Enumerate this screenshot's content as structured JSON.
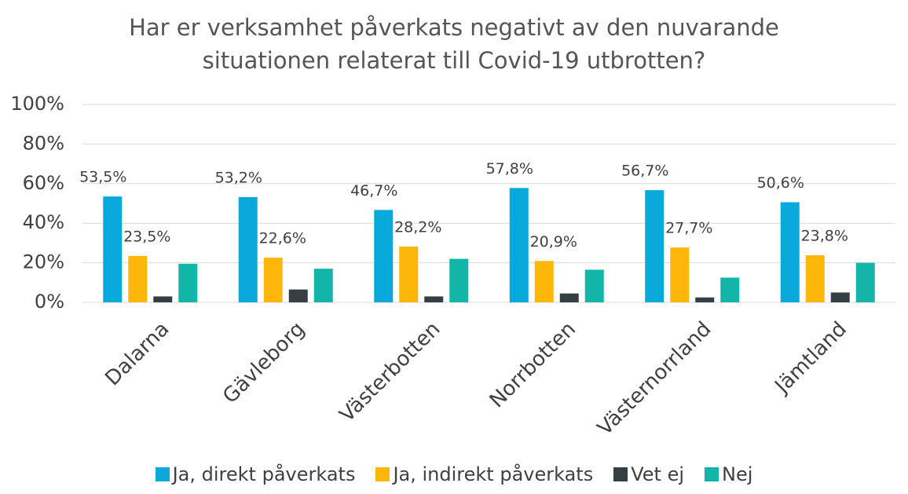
{
  "chart_data": {
    "type": "bar",
    "title": "Har er verksamhet påverkats negativt av den nuvarande situationen relaterat till Covid-19 utbrotten?",
    "categories": [
      "Dalarna",
      "Gävleborg",
      "Västerbotten",
      "Norrbotten",
      "Västernorrland",
      "Jämtland"
    ],
    "series": [
      {
        "name": "Ja, direkt påverkats",
        "color": "#0aa9dc",
        "values": [
          53.5,
          53.2,
          46.7,
          57.8,
          56.7,
          50.6
        ],
        "value_labels": [
          "53,5%",
          "53,2%",
          "46,7%",
          "57,8%",
          "56,7%",
          "50,6%"
        ]
      },
      {
        "name": "Ja, indirekt påverkats",
        "color": "#ffb60a",
        "values": [
          23.5,
          22.6,
          28.2,
          20.9,
          27.7,
          23.8
        ],
        "value_labels": [
          "23,5%",
          "22,6%",
          "28,2%",
          "20,9%",
          "27,7%",
          "23,8%"
        ]
      },
      {
        "name": "Vet ej",
        "color": "#363f44",
        "values": [
          3,
          6.5,
          3,
          4.5,
          2.5,
          5
        ]
      },
      {
        "name": "Nej",
        "color": "#12b5a8",
        "values": [
          19.5,
          17,
          22,
          16.5,
          12.5,
          20
        ]
      }
    ],
    "ylim": [
      0,
      100
    ],
    "yticks": [
      {
        "value": 0,
        "label": "0%"
      },
      {
        "value": 20,
        "label": "20%"
      },
      {
        "value": 40,
        "label": "40%"
      },
      {
        "value": 60,
        "label": "60%"
      },
      {
        "value": 80,
        "label": "80%"
      },
      {
        "value": 100,
        "label": "100%"
      }
    ],
    "grid": true,
    "legend": "bottom"
  }
}
